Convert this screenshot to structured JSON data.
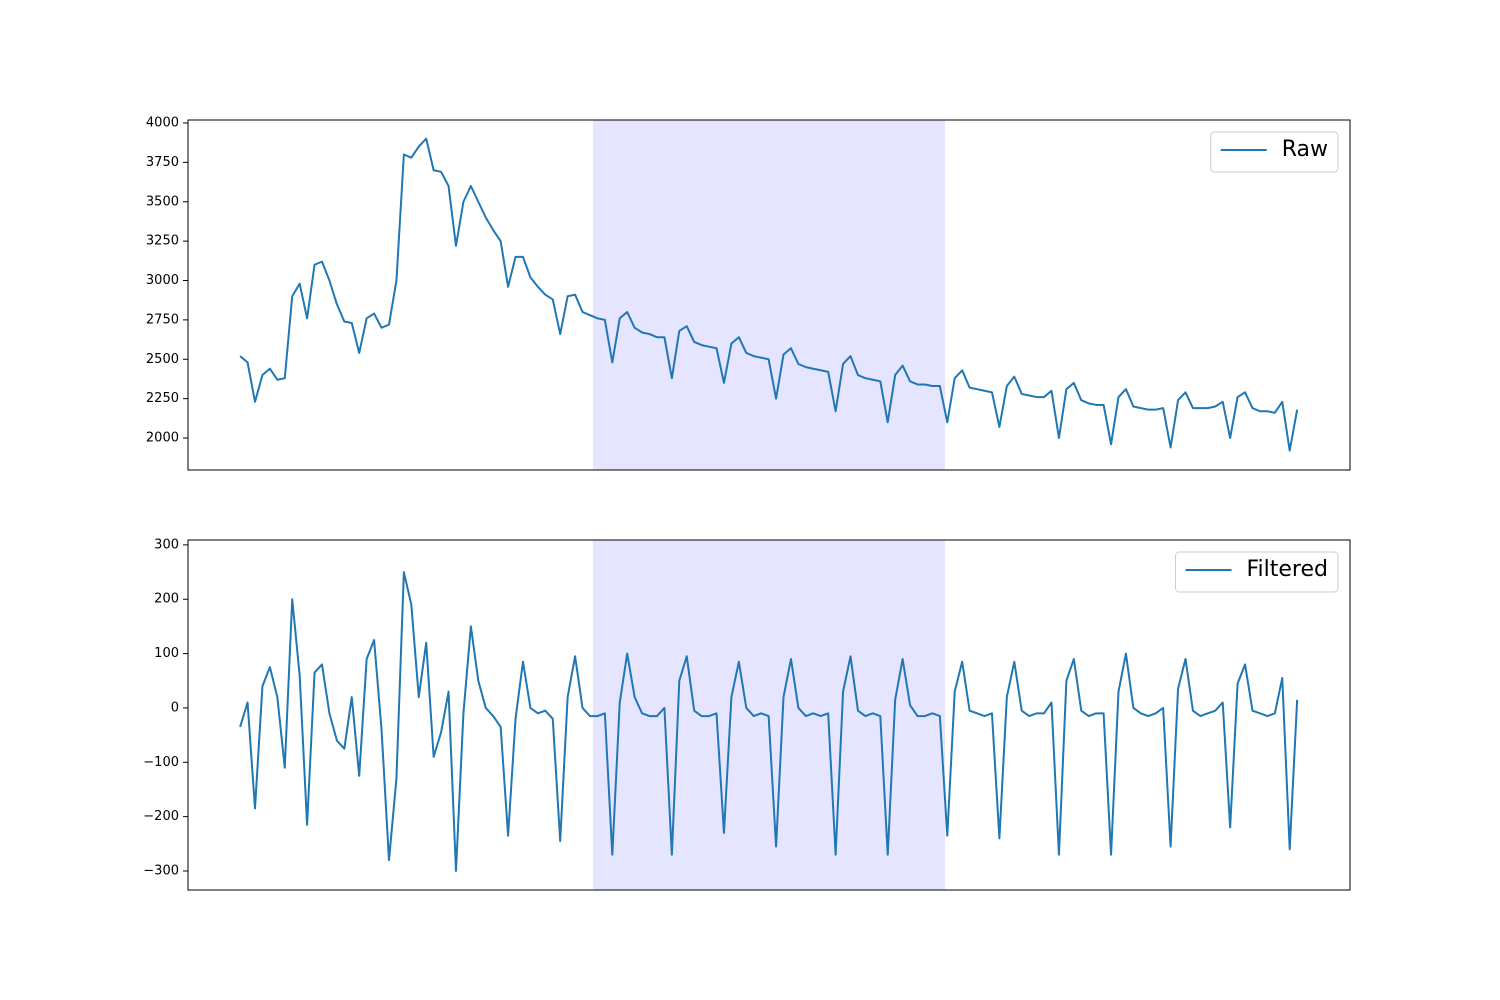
{
  "chart_data": [
    {
      "type": "line",
      "legend": "upper right",
      "xlim": [
        -7,
        149.1
      ],
      "span": [
        47.4,
        94.7
      ],
      "span_color": "#e5e5ff",
      "ylim": [
        1797,
        4019
      ],
      "yticks": [
        2000,
        2250,
        2500,
        2750,
        3000,
        3250,
        3500,
        3750,
        4000
      ],
      "series": [
        {
          "name": "Raw",
          "color": "#1f77b4",
          "values": [
            2520,
            2480,
            2230,
            2400,
            2440,
            2370,
            2380,
            2900,
            2980,
            2760,
            3100,
            3120,
            3000,
            2850,
            2740,
            2730,
            2540,
            2760,
            2790,
            2700,
            2720,
            3000,
            3800,
            3780,
            3850,
            3900,
            3700,
            3690,
            3600,
            3220,
            3500,
            3600,
            3500,
            3400,
            3320,
            3250,
            2960,
            3150,
            3150,
            3020,
            2960,
            2910,
            2880,
            2660,
            2900,
            2910,
            2800,
            2780,
            2760,
            2750,
            2480,
            2760,
            2800,
            2700,
            2670,
            2660,
            2640,
            2640,
            2380,
            2680,
            2710,
            2610,
            2590,
            2580,
            2570,
            2350,
            2600,
            2640,
            2540,
            2520,
            2510,
            2500,
            2250,
            2530,
            2570,
            2470,
            2450,
            2440,
            2430,
            2420,
            2170,
            2470,
            2520,
            2400,
            2380,
            2370,
            2360,
            2100,
            2400,
            2460,
            2360,
            2340,
            2340,
            2330,
            2330,
            2100,
            2380,
            2430,
            2320,
            2310,
            2300,
            2290,
            2070,
            2330,
            2390,
            2280,
            2270,
            2260,
            2260,
            2300,
            2000,
            2310,
            2350,
            2240,
            2220,
            2210,
            2210,
            1960,
            2260,
            2310,
            2200,
            2190,
            2180,
            2180,
            2190,
            1940,
            2240,
            2290,
            2190,
            2190,
            2190,
            2200,
            2230,
            2000,
            2260,
            2290,
            2190,
            2170,
            2170,
            2160,
            2230,
            1920,
            2180
          ]
        }
      ]
    },
    {
      "type": "line",
      "legend": "upper right",
      "xlim": [
        -7,
        149.1
      ],
      "span": [
        47.4,
        94.7
      ],
      "span_color": "#e5e5ff",
      "ylim": [
        -335,
        309
      ],
      "yticks": [
        {
          "value": -300,
          "label": "−300"
        },
        {
          "value": -200,
          "label": "−200"
        },
        {
          "value": -100,
          "label": "−100"
        },
        0,
        100,
        200,
        300
      ],
      "series": [
        {
          "name": "Filtered",
          "color": "#1f77b4",
          "values": [
            -35,
            10,
            -185,
            40,
            75,
            20,
            -110,
            200,
            60,
            -215,
            65,
            80,
            -10,
            -60,
            -75,
            20,
            -125,
            90,
            125,
            -40,
            -280,
            -130,
            250,
            190,
            20,
            120,
            -90,
            -45,
            30,
            -300,
            -10,
            150,
            50,
            0,
            -15,
            -35,
            -235,
            -20,
            85,
            0,
            -10,
            -5,
            -20,
            -245,
            20,
            95,
            0,
            -15,
            -15,
            -10,
            -270,
            10,
            100,
            20,
            -10,
            -15,
            -15,
            0,
            -270,
            50,
            95,
            -5,
            -15,
            -15,
            -10,
            -230,
            20,
            85,
            0,
            -15,
            -10,
            -15,
            -255,
            20,
            90,
            0,
            -15,
            -10,
            -15,
            -10,
            -270,
            30,
            95,
            -5,
            -15,
            -10,
            -15,
            -270,
            15,
            90,
            5,
            -15,
            -15,
            -10,
            -15,
            -235,
            30,
            85,
            -5,
            -10,
            -15,
            -10,
            -240,
            20,
            85,
            -5,
            -15,
            -10,
            -10,
            10,
            -270,
            50,
            90,
            -5,
            -15,
            -10,
            -10,
            -270,
            30,
            100,
            0,
            -10,
            -15,
            -10,
            0,
            -255,
            35,
            90,
            -5,
            -15,
            -10,
            -5,
            10,
            -220,
            45,
            80,
            -5,
            -10,
            -15,
            -10,
            55,
            -260,
            15
          ]
        }
      ]
    }
  ]
}
